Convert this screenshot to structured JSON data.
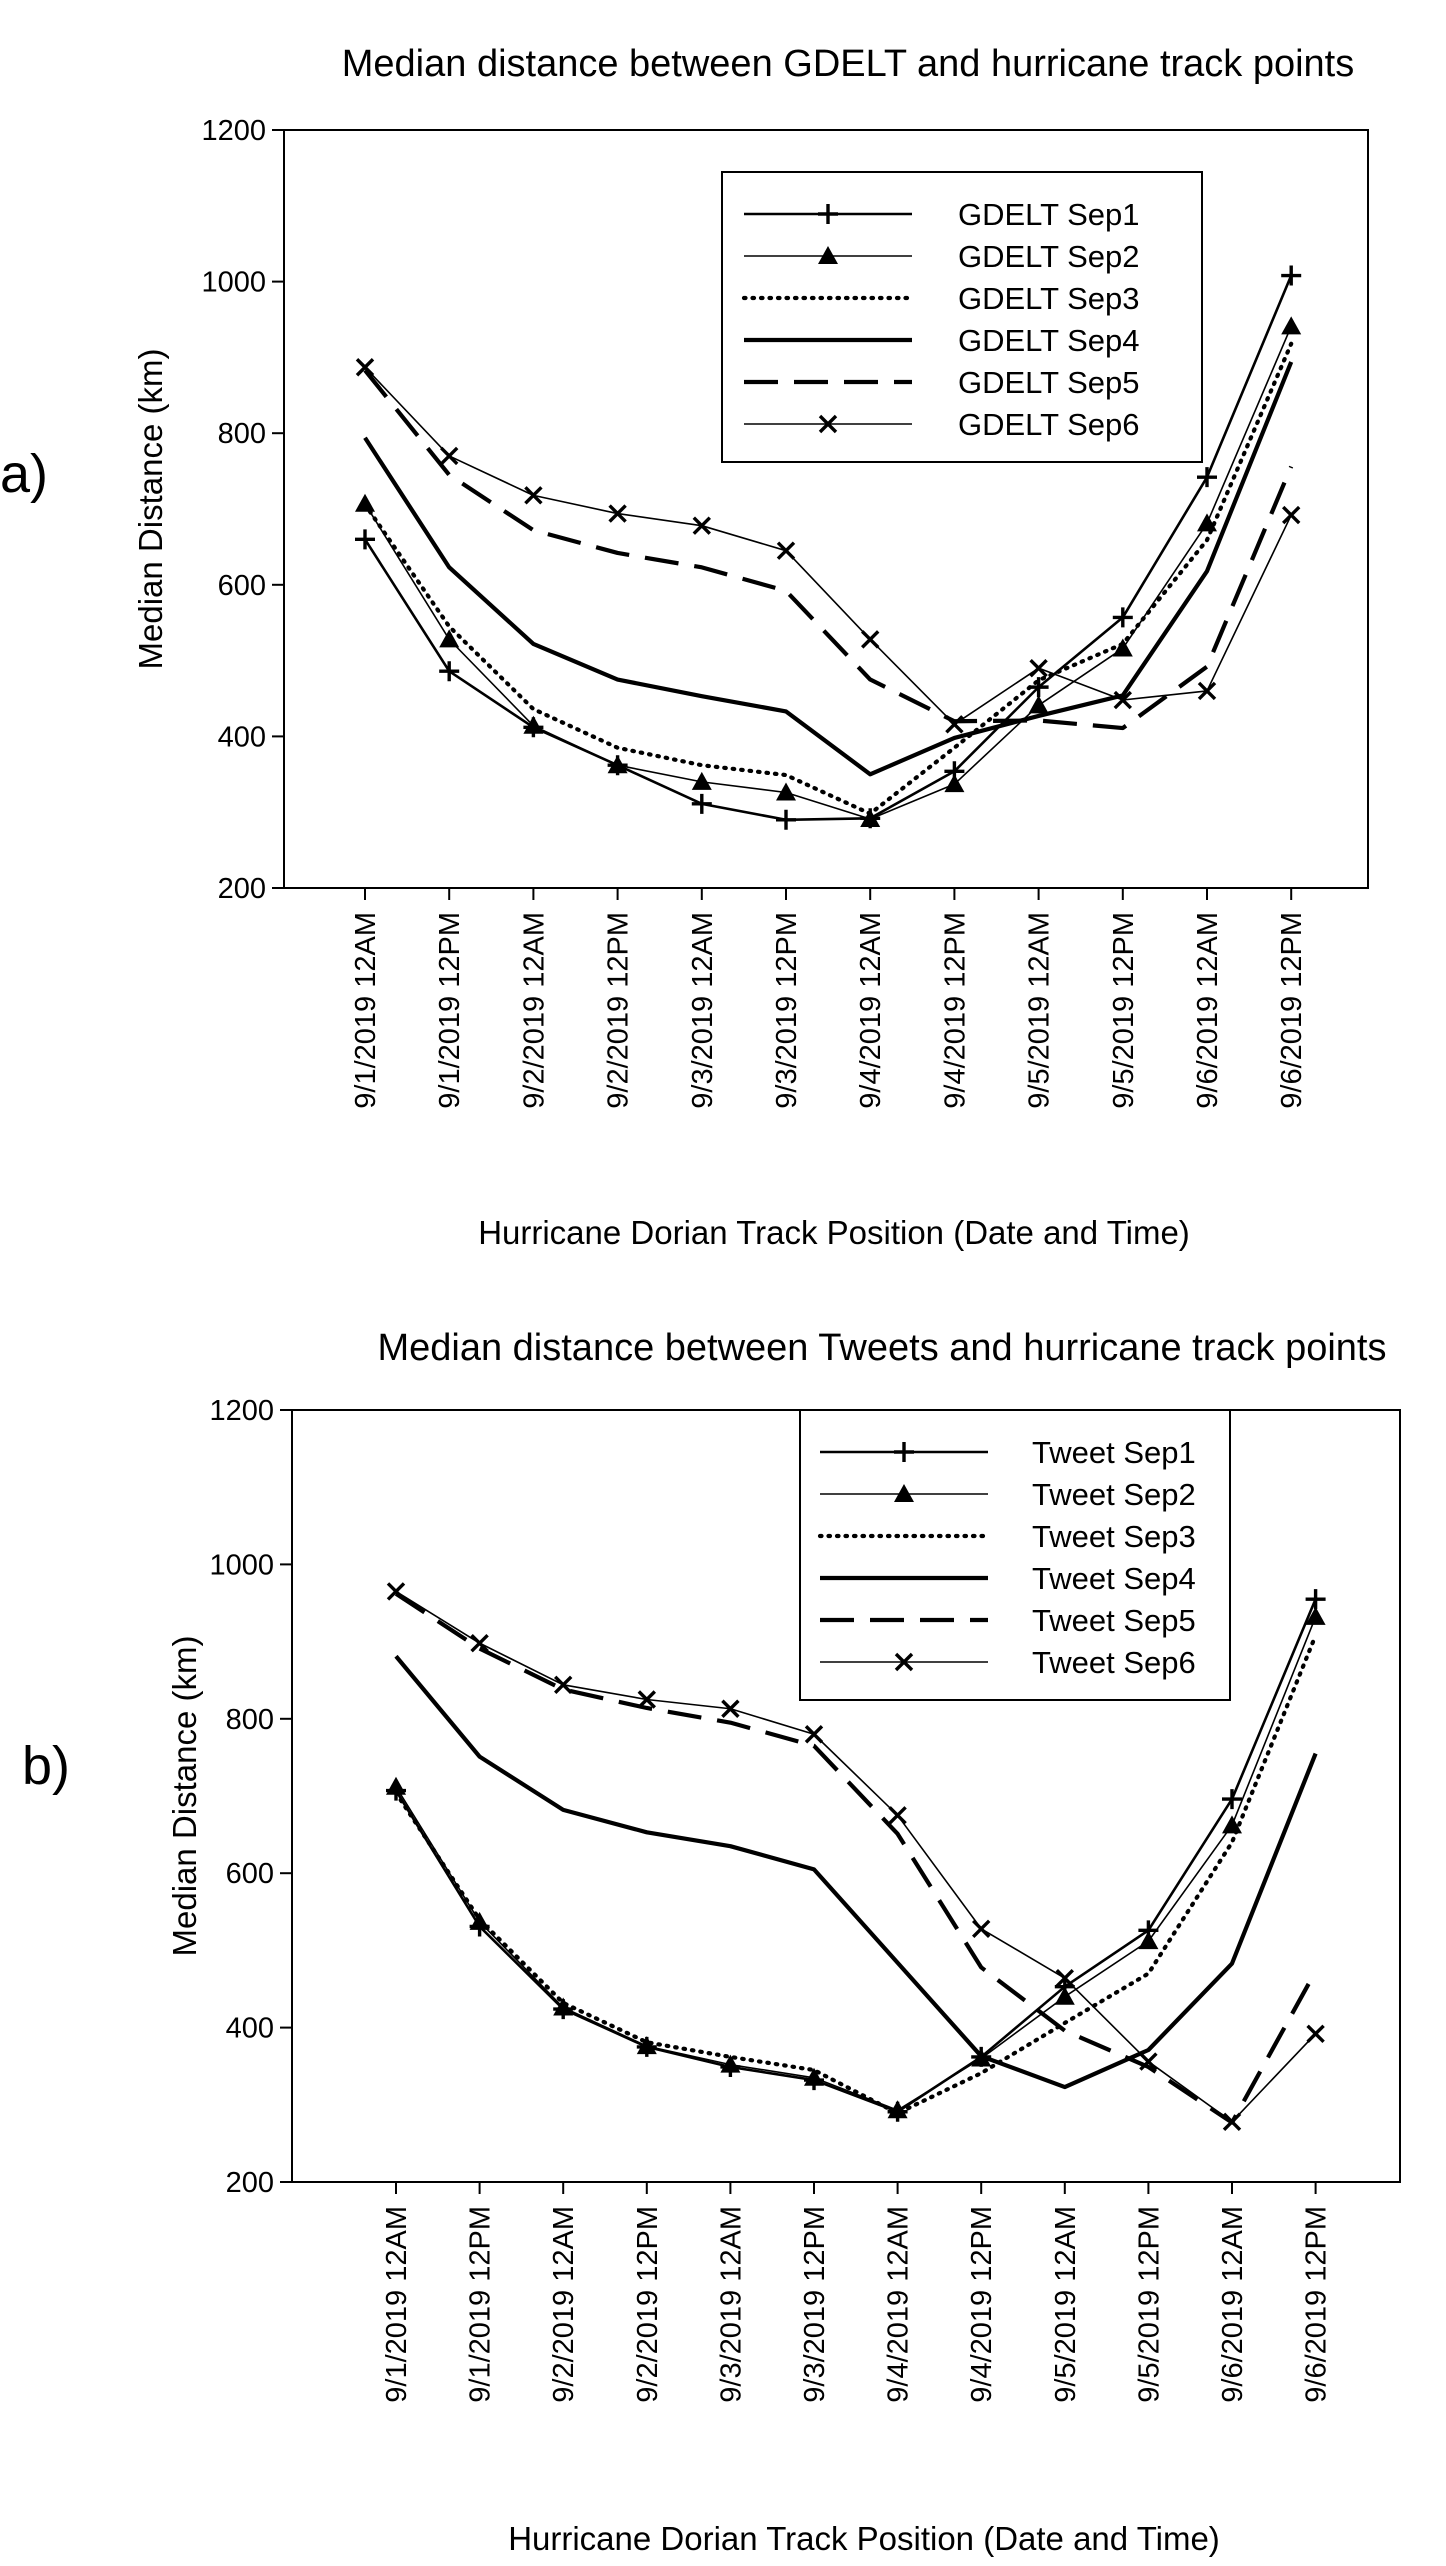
{
  "colors": {
    "line": "#000000",
    "background": "#ffffff"
  },
  "chart_data": [
    {
      "type": "line",
      "panel_label": "a)",
      "title": "Median distance between GDELT and hurricane track points",
      "xlabel": "Hurricane Dorian Track Position (Date and Time)",
      "ylabel": "Median Distance (km)",
      "ylim": [
        200,
        1200
      ],
      "yticks": [
        "200",
        "400",
        "600",
        "800",
        "1000",
        "1200"
      ],
      "grid": false,
      "legend_position": "top-right",
      "categories": [
        "9/1/2019 12AM",
        "9/1/2019 12PM",
        "9/2/2019 12AM",
        "9/2/2019 12PM",
        "9/3/2019 12AM",
        "9/3/2019 12PM",
        "9/4/2019 12AM",
        "9/4/2019 12PM",
        "9/5/2019 12AM",
        "9/5/2019 12PM",
        "9/6/2019 12AM",
        "9/6/2019 12PM"
      ],
      "series": [
        {
          "name": "GDELT Sep1",
          "line_style": "solid",
          "line_width": "medium",
          "marker": "plus",
          "values": [
            660,
            486,
            412,
            362,
            311,
            290,
            292,
            354,
            465,
            557,
            742,
            1008
          ]
        },
        {
          "name": "GDELT Sep2",
          "line_style": "solid",
          "line_width": "thin",
          "marker": "triangle",
          "values": [
            707,
            528,
            414,
            362,
            340,
            326,
            291,
            337,
            441,
            516,
            681,
            941
          ]
        },
        {
          "name": "GDELT Sep3",
          "line_style": "dotted",
          "line_width": "bold",
          "marker": "none",
          "values": [
            706,
            545,
            436,
            385,
            362,
            349,
            298,
            385,
            474,
            522,
            659,
            918
          ]
        },
        {
          "name": "GDELT Sep4",
          "line_style": "solid",
          "line_width": "bold",
          "marker": "none",
          "values": [
            794,
            623,
            522,
            475,
            453,
            433,
            350,
            398,
            427,
            454,
            618,
            894
          ]
        },
        {
          "name": "GDELT Sep5",
          "line_style": "dashed",
          "line_width": "bold",
          "marker": "none",
          "values": [
            883,
            745,
            672,
            642,
            623,
            592,
            475,
            420,
            421,
            411,
            492,
            756
          ]
        },
        {
          "name": "GDELT Sep6",
          "line_style": "solid",
          "line_width": "thin",
          "marker": "x",
          "values": [
            887,
            770,
            718,
            694,
            678,
            645,
            528,
            416,
            490,
            448,
            460,
            692
          ]
        }
      ]
    },
    {
      "type": "line",
      "panel_label": "b)",
      "title": "Median distance between Tweets and hurricane track points",
      "xlabel": "Hurricane Dorian Track Position (Date and Time)",
      "ylabel": "Median Distance (km)",
      "ylim": [
        200,
        1200
      ],
      "yticks": [
        "200",
        "400",
        "600",
        "800",
        "1000",
        "1200"
      ],
      "grid": false,
      "legend_position": "top-right",
      "categories": [
        "9/1/2019 12AM",
        "9/1/2019 12PM",
        "9/2/2019 12AM",
        "9/2/2019 12PM",
        "9/3/2019 12AM",
        "9/3/2019 12PM",
        "9/4/2019 12AM",
        "9/4/2019 12PM",
        "9/5/2019 12AM",
        "9/5/2019 12PM",
        "9/6/2019 12AM",
        "9/6/2019 12PM"
      ],
      "series": [
        {
          "name": "Tweet Sep1",
          "line_style": "solid",
          "line_width": "medium",
          "marker": "plus",
          "values": [
            707,
            531,
            424,
            375,
            349,
            332,
            291,
            362,
            453,
            526,
            696,
            955
          ]
        },
        {
          "name": "Tweet Sep2",
          "line_style": "solid",
          "line_width": "thin",
          "marker": "triangle",
          "values": [
            712,
            537,
            426,
            376,
            352,
            335,
            293,
            360,
            440,
            512,
            662,
            932
          ]
        },
        {
          "name": "Tweet Sep3",
          "line_style": "dotted",
          "line_width": "bold",
          "marker": "none",
          "values": [
            704,
            540,
            432,
            381,
            362,
            345,
            289,
            341,
            406,
            470,
            640,
            908
          ]
        },
        {
          "name": "Tweet Sep4",
          "line_style": "solid",
          "line_width": "bold",
          "marker": "none",
          "values": [
            881,
            751,
            682,
            653,
            635,
            605,
            484,
            363,
            323,
            371,
            483,
            755
          ]
        },
        {
          "name": "Tweet Sep5",
          "line_style": "dashed",
          "line_width": "bold",
          "marker": "none",
          "values": [
            962,
            891,
            838,
            814,
            795,
            765,
            651,
            478,
            396,
            349,
            277,
            473
          ]
        },
        {
          "name": "Tweet Sep6",
          "line_style": "solid",
          "line_width": "thin",
          "marker": "x",
          "values": [
            965,
            898,
            844,
            825,
            813,
            780,
            675,
            528,
            464,
            356,
            278,
            392
          ]
        }
      ]
    }
  ]
}
